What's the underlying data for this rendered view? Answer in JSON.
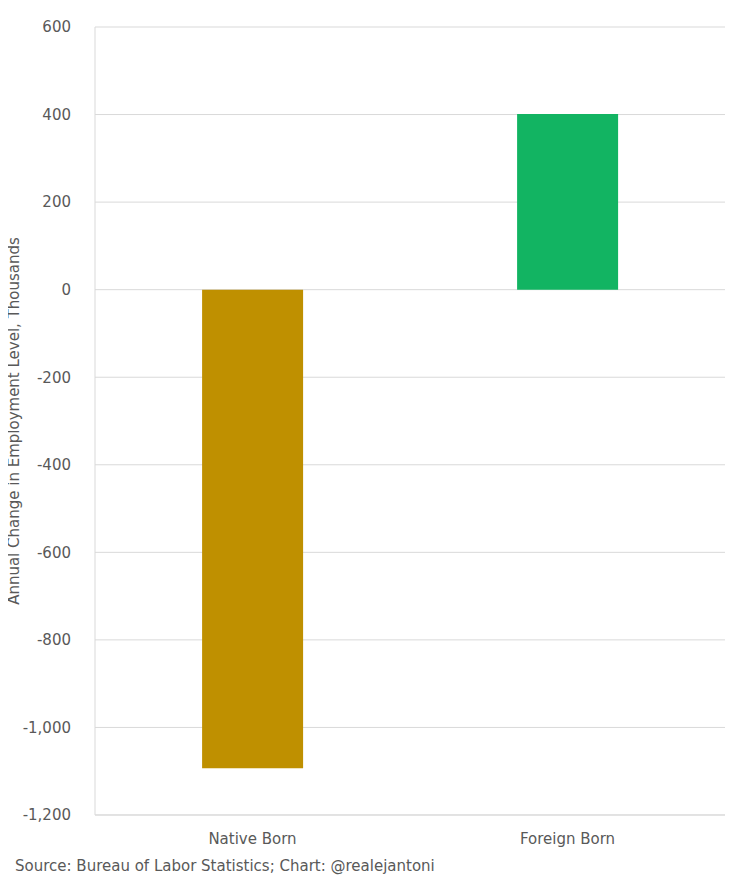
{
  "chart_data": {
    "type": "bar",
    "categories": [
      "Native Born",
      "Foreign Born"
    ],
    "values": [
      -1093,
      401
    ],
    "colors": [
      "#bf9000",
      "#12b462"
    ],
    "y_label": "Annual Change in Employment Level, Thousands",
    "ylim": [
      -1200,
      600
    ],
    "yticks": [
      {
        "value": -1200,
        "label": "-1,200"
      },
      {
        "value": -1000,
        "label": "-1,000"
      },
      -800,
      -600,
      -400,
      -200,
      0,
      200,
      400,
      600
    ],
    "grid": true,
    "source": "Source: Bureau of Labor Statistics; Chart: @realejantoni"
  }
}
